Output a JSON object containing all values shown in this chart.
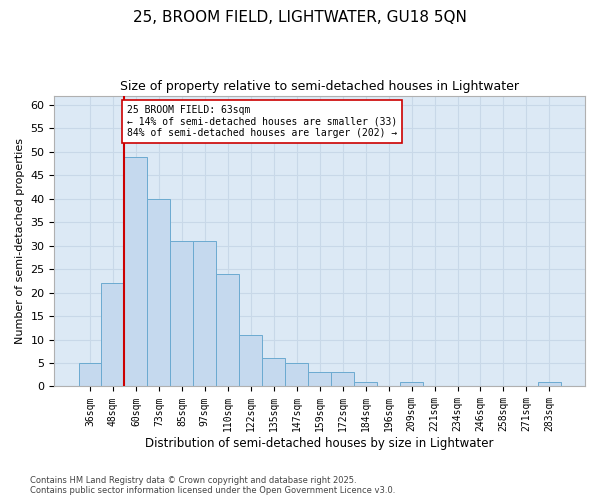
{
  "title1": "25, BROOM FIELD, LIGHTWATER, GU18 5QN",
  "title2": "Size of property relative to semi-detached houses in Lightwater",
  "xlabel": "Distribution of semi-detached houses by size in Lightwater",
  "ylabel": "Number of semi-detached properties",
  "categories": [
    "36sqm",
    "48sqm",
    "60sqm",
    "73sqm",
    "85sqm",
    "97sqm",
    "110sqm",
    "122sqm",
    "135sqm",
    "147sqm",
    "159sqm",
    "172sqm",
    "184sqm",
    "196sqm",
    "209sqm",
    "221sqm",
    "234sqm",
    "246sqm",
    "258sqm",
    "271sqm",
    "283sqm"
  ],
  "values": [
    5,
    22,
    49,
    40,
    31,
    31,
    24,
    11,
    6,
    5,
    3,
    3,
    1,
    0,
    1,
    0,
    0,
    0,
    0,
    0,
    1
  ],
  "bar_color": "#c5d9ee",
  "bar_edge_color": "#6baad0",
  "vline_color": "#cc0000",
  "annotation_box_color": "#ffffff",
  "annotation_box_edge": "#cc0000",
  "highlight_label": "25 BROOM FIELD: 63sqm\n← 14% of semi-detached houses are smaller (33)\n84% of semi-detached houses are larger (202) →",
  "ylim": [
    0,
    62
  ],
  "yticks": [
    0,
    5,
    10,
    15,
    20,
    25,
    30,
    35,
    40,
    45,
    50,
    55,
    60
  ],
  "plot_bg": "#dce9f5",
  "fig_bg": "#ffffff",
  "grid_color": "#c8d8e8",
  "footer1": "Contains HM Land Registry data © Crown copyright and database right 2025.",
  "footer2": "Contains public sector information licensed under the Open Government Licence v3.0."
}
